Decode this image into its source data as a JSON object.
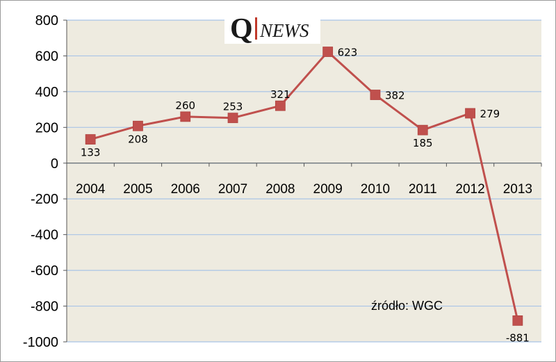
{
  "logo": {
    "q": "Q",
    "news": "NEWS",
    "bar_color": "#c0392b"
  },
  "source_note": "źródło: WGC",
  "colors": {
    "plot_bg": "#eeebe0",
    "gridline": "#a9c4e6",
    "series": "#c0504d",
    "axis": "#555555"
  },
  "chart_data": {
    "type": "line",
    "title": "",
    "xlabel": "",
    "ylabel": "",
    "categories": [
      "2004",
      "2005",
      "2006",
      "2007",
      "2008",
      "2009",
      "2010",
      "2011",
      "2012",
      "2013"
    ],
    "values": [
      133,
      208,
      260,
      253,
      321,
      623,
      382,
      185,
      279,
      -881
    ],
    "data_labels": [
      "133",
      "208",
      "260",
      "253",
      "321",
      "623",
      "382",
      "185",
      "279",
      "-881"
    ],
    "ylim": [
      -1000,
      800
    ],
    "yticks": [
      800,
      600,
      400,
      200,
      0,
      -200,
      -400,
      -600,
      -800,
      -1000
    ],
    "ytick_labels": [
      "800",
      "600",
      "400",
      "200",
      "0",
      "-200",
      "-400",
      "-600",
      "-800",
      "-1000"
    ],
    "grid": true,
    "marker": "square"
  }
}
